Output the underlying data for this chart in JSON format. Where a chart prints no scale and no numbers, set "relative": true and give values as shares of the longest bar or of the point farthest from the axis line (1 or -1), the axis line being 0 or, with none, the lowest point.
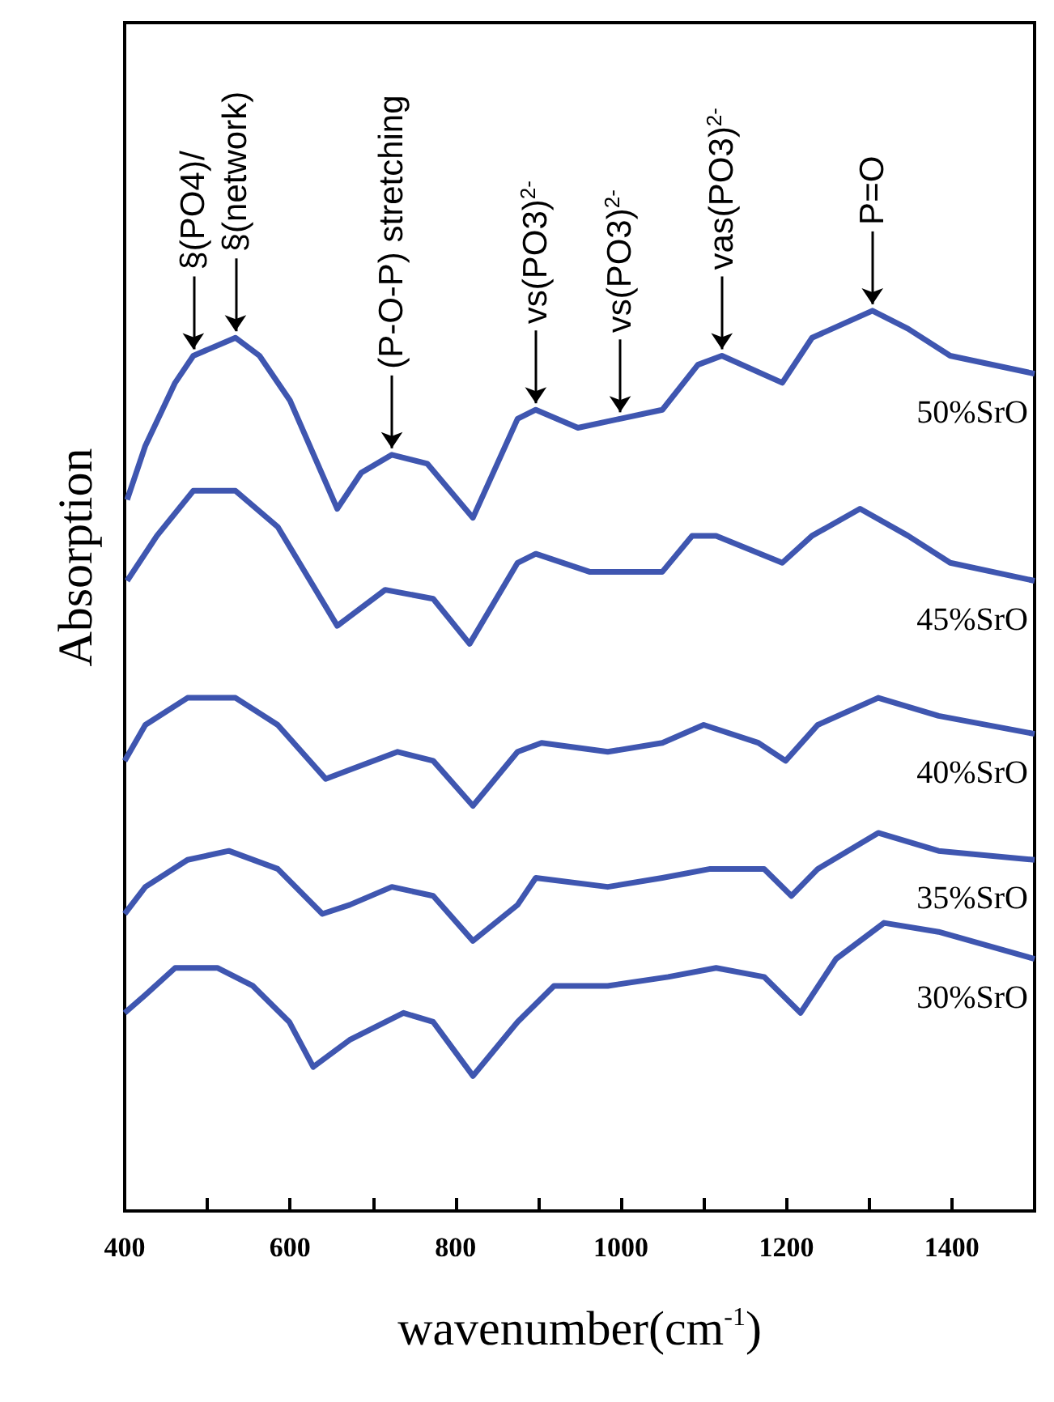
{
  "chart_data": {
    "type": "line",
    "relative": true,
    "xlabel": "wavenumber(cm$^{-1}$)",
    "ylabel": "Absorption",
    "xlim": [
      400,
      1500
    ],
    "xticks": [
      400,
      {
        "value": 500,
        "label": null
      },
      600,
      {
        "value": 700,
        "label": null
      },
      800,
      {
        "value": 900,
        "label": null
      },
      1000,
      {
        "value": 1100,
        "label": null
      },
      1200,
      {
        "value": 1300,
        "label": null
      },
      1400
    ],
    "series": [
      {
        "name": "50%SrO",
        "color": "#3f56b0",
        "x": [
          403,
          425,
          461,
          483,
          534,
          563,
          600,
          657,
          686,
          723,
          766,
          821,
          875,
          897,
          948,
          999,
          1050,
          1093,
          1122,
          1195,
          1231,
          1304,
          1347,
          1398,
          1500
        ],
        "values": [
          0.79,
          0.85,
          0.92,
          0.95,
          0.97,
          0.95,
          0.9,
          0.78,
          0.82,
          0.84,
          0.83,
          0.77,
          0.88,
          0.89,
          0.87,
          0.88,
          0.89,
          0.94,
          0.95,
          0.92,
          0.97,
          1.0,
          0.98,
          0.95,
          0.93
        ]
      },
      {
        "name": "45%SrO",
        "color": "#3f56b0",
        "x": [
          403,
          439,
          483,
          534,
          585,
          657,
          715,
          773,
          817,
          875,
          897,
          962,
          1050,
          1086,
          1115,
          1195,
          1231,
          1289,
          1347,
          1398,
          1500
        ],
        "values": [
          0.7,
          0.75,
          0.8,
          0.8,
          0.76,
          0.65,
          0.69,
          0.68,
          0.63,
          0.72,
          0.73,
          0.71,
          0.71,
          0.75,
          0.75,
          0.72,
          0.75,
          0.78,
          0.75,
          0.72,
          0.7
        ]
      },
      {
        "name": "40%SrO",
        "color": "#3f56b0",
        "x": [
          400,
          425,
          476,
          534,
          585,
          643,
          672,
          730,
          773,
          821,
          875,
          904,
          984,
          1050,
          1100,
          1166,
          1199,
          1238,
          1311,
          1384,
          1500
        ],
        "values": [
          0.5,
          0.54,
          0.57,
          0.57,
          0.54,
          0.48,
          0.49,
          0.51,
          0.5,
          0.45,
          0.51,
          0.52,
          0.51,
          0.52,
          0.54,
          0.52,
          0.5,
          0.54,
          0.57,
          0.55,
          0.53
        ]
      },
      {
        "name": "35%SrO",
        "color": "#3f56b0",
        "x": [
          400,
          425,
          476,
          526,
          585,
          639,
          672,
          723,
          773,
          821,
          875,
          897,
          984,
          1050,
          1108,
          1173,
          1206,
          1238,
          1311,
          1384,
          1500
        ],
        "values": [
          0.33,
          0.36,
          0.39,
          0.4,
          0.38,
          0.33,
          0.34,
          0.36,
          0.35,
          0.3,
          0.34,
          0.37,
          0.36,
          0.37,
          0.38,
          0.38,
          0.35,
          0.38,
          0.42,
          0.4,
          0.39
        ]
      },
      {
        "name": "30%SrO",
        "color": "#3f56b0",
        "x": [
          400,
          425,
          461,
          512,
          555,
          599,
          628,
          672,
          737,
          773,
          821,
          875,
          919,
          984,
          1057,
          1115,
          1173,
          1217,
          1260,
          1318,
          1384,
          1500
        ],
        "values": [
          0.22,
          0.24,
          0.27,
          0.27,
          0.25,
          0.21,
          0.16,
          0.19,
          0.22,
          0.21,
          0.15,
          0.21,
          0.25,
          0.25,
          0.26,
          0.27,
          0.26,
          0.22,
          0.28,
          0.32,
          0.31,
          0.28
        ]
      }
    ],
    "annotations": [
      {
        "text": "§(PO4)/",
        "x": 483,
        "y": 0.95
      },
      {
        "text": "§(network)",
        "x": 534,
        "y": 0.97
      },
      {
        "text": "(P-O-P) stretching",
        "x": 723,
        "y": 0.84
      },
      {
        "text": "vs(PO3)$^{2-}$",
        "x": 897,
        "y": 0.89
      },
      {
        "text": "vs(PO3)$^{2-}$",
        "x": 999,
        "y": 0.88
      },
      {
        "text": "vas(PO3)$^{2-}$",
        "x": 1122,
        "y": 0.95
      },
      {
        "text": "P=O",
        "x": 1304,
        "y": 1.0
      }
    ]
  }
}
